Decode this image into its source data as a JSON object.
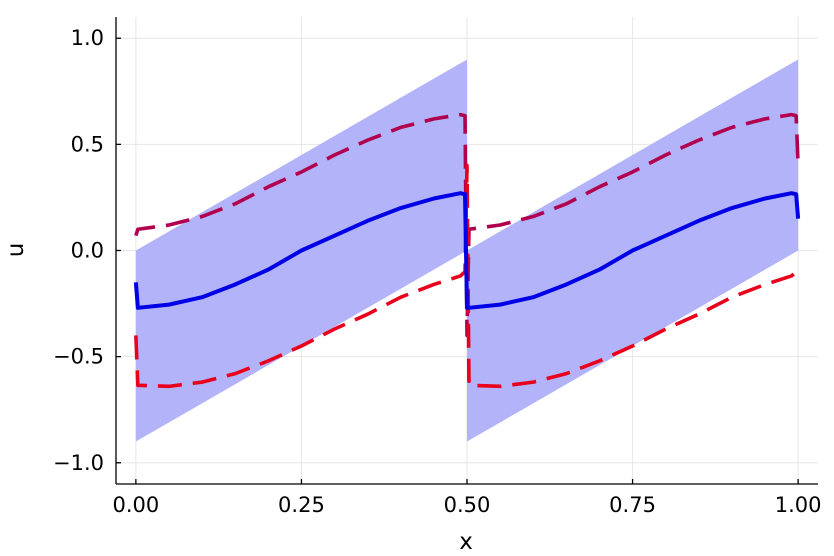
{
  "chart_data": {
    "type": "line",
    "title": "",
    "xlabel": "x",
    "ylabel": "u",
    "xlim": [
      -0.03,
      1.03
    ],
    "ylim": [
      -1.1,
      1.1
    ],
    "xticks": [
      0.0,
      0.25,
      0.5,
      0.75,
      1.0
    ],
    "xtick_labels": [
      "0.00",
      "0.25",
      "0.50",
      "0.75",
      "1.00"
    ],
    "yticks": [
      -1.0,
      -0.5,
      0.0,
      0.5,
      1.0
    ],
    "ytick_labels": [
      "−1.0",
      "−0.5",
      "0.0",
      "0.5",
      "1.0"
    ],
    "grid": true,
    "legend": "none",
    "colors": {
      "band": "#b3b3f9",
      "mean": "#0000e6",
      "upper": "#b0004e",
      "lower": "#e8001c",
      "grid": "#e6e6e6",
      "axis": "#000000"
    },
    "series": [
      {
        "kind": "band",
        "x": [
          0.0,
          0.1,
          0.2,
          0.3,
          0.4,
          0.5,
          0.5,
          0.6,
          0.7,
          0.8,
          0.9,
          1.0
        ],
        "lower": [
          -0.9,
          -0.72,
          -0.54,
          -0.36,
          -0.18,
          0.0,
          -0.9,
          -0.72,
          -0.54,
          -0.36,
          -0.18,
          0.0
        ],
        "upper": [
          0.0,
          0.18,
          0.36,
          0.54,
          0.72,
          0.9,
          0.0,
          0.18,
          0.36,
          0.54,
          0.72,
          0.9
        ]
      },
      {
        "kind": "line",
        "style": "solid",
        "x": [
          0.0,
          0.003,
          0.05,
          0.1,
          0.15,
          0.2,
          0.25,
          0.3,
          0.35,
          0.4,
          0.45,
          0.49,
          0.497,
          0.5,
          0.503,
          0.55,
          0.6,
          0.65,
          0.7,
          0.75,
          0.8,
          0.85,
          0.9,
          0.95,
          0.99,
          0.997,
          1.0
        ],
        "y": [
          -0.15,
          -0.27,
          -0.255,
          -0.22,
          -0.16,
          -0.09,
          0.0,
          0.07,
          0.14,
          0.2,
          0.245,
          0.27,
          0.265,
          -0.27,
          -0.27,
          -0.255,
          -0.22,
          -0.16,
          -0.09,
          0.0,
          0.07,
          0.14,
          0.2,
          0.245,
          0.27,
          0.265,
          0.15
        ]
      },
      {
        "kind": "line",
        "style": "dashed",
        "x": [
          0.0,
          0.003,
          0.05,
          0.1,
          0.15,
          0.2,
          0.25,
          0.3,
          0.35,
          0.4,
          0.45,
          0.49,
          0.497,
          0.5,
          0.503,
          0.55,
          0.6,
          0.65,
          0.7,
          0.75,
          0.8,
          0.85,
          0.9,
          0.95,
          0.99,
          0.997,
          1.0
        ],
        "y": [
          0.07,
          0.1,
          0.12,
          0.16,
          0.22,
          0.3,
          0.37,
          0.45,
          0.52,
          0.58,
          0.62,
          0.64,
          0.635,
          -0.4,
          0.1,
          0.12,
          0.16,
          0.22,
          0.3,
          0.37,
          0.45,
          0.52,
          0.58,
          0.62,
          0.64,
          0.635,
          0.4
        ]
      },
      {
        "kind": "line",
        "style": "dashed",
        "x": [
          0.0,
          0.003,
          0.05,
          0.1,
          0.15,
          0.2,
          0.25,
          0.3,
          0.35,
          0.4,
          0.45,
          0.49,
          0.497,
          0.5,
          0.503,
          0.55,
          0.6,
          0.65,
          0.7,
          0.75,
          0.8,
          0.85,
          0.9,
          0.95,
          0.99,
          0.997,
          1.0
        ],
        "y": [
          -0.4,
          -0.635,
          -0.64,
          -0.62,
          -0.58,
          -0.52,
          -0.45,
          -0.37,
          -0.3,
          -0.22,
          -0.16,
          -0.12,
          -0.1,
          0.4,
          -0.635,
          -0.64,
          -0.62,
          -0.58,
          -0.52,
          -0.45,
          -0.37,
          -0.3,
          -0.22,
          -0.16,
          -0.12,
          -0.1,
          -0.07
        ]
      }
    ]
  }
}
